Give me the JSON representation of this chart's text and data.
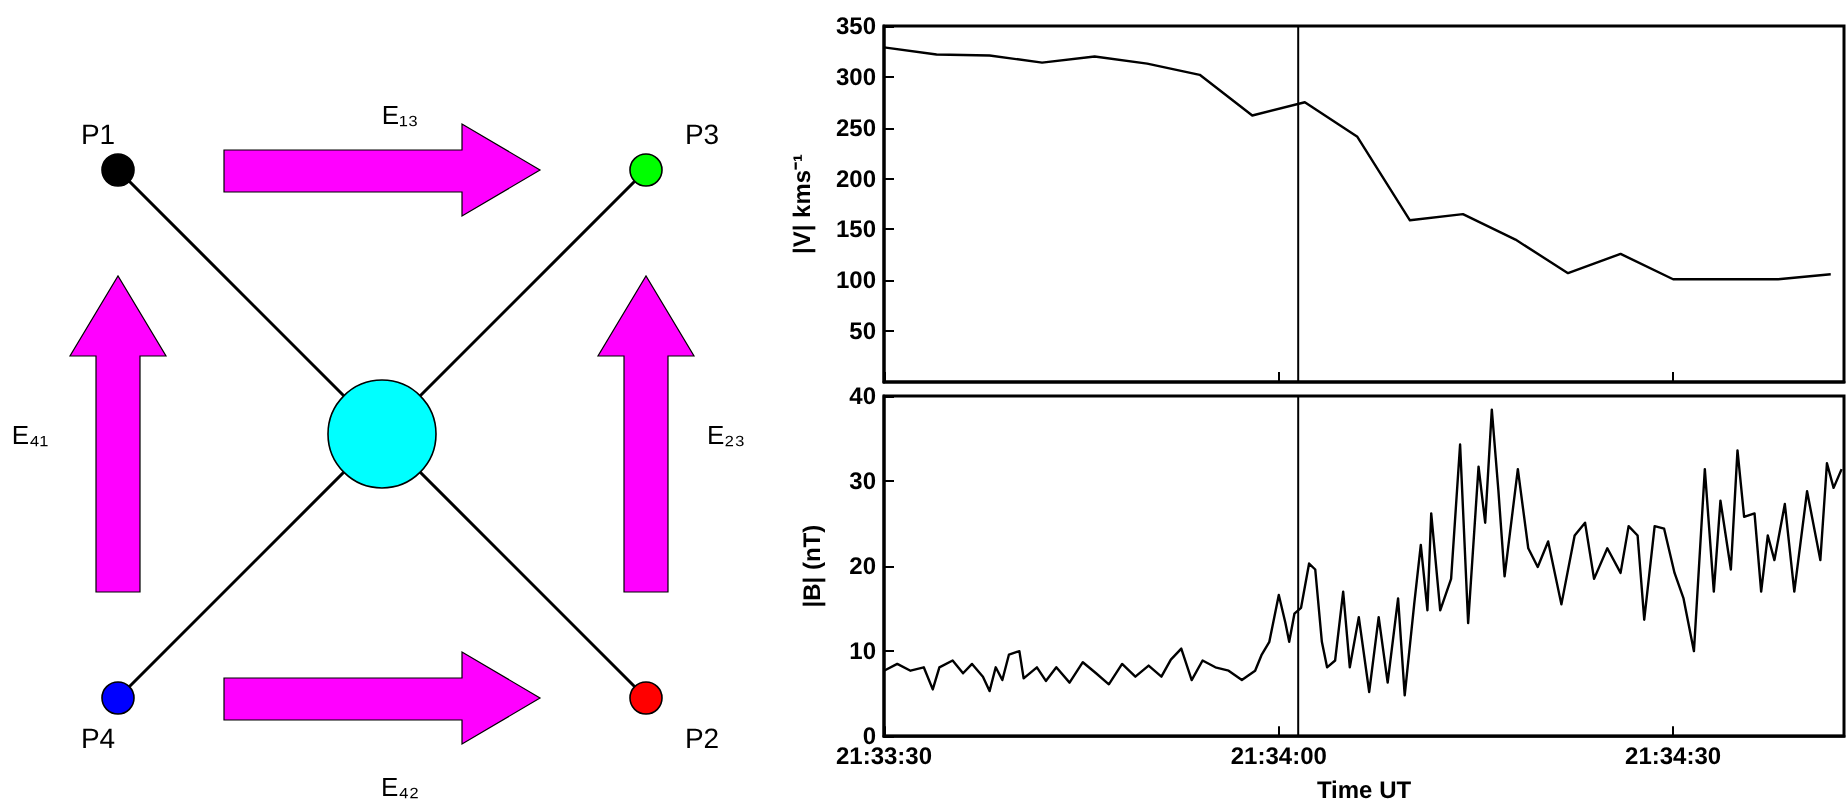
{
  "chart_data": [
    {
      "type": "other",
      "annotations": [
        "P1",
        "P3",
        "P4",
        "P2",
        "E₁₃",
        "E₄₁",
        "E₂₃",
        "E₄₂"
      ]
    },
    {
      "type": "line",
      "ylabel": "|V| kms⁻¹",
      "tick_labels": "y",
      "xlim": [
        21.55833,
        21.57861
      ],
      "xticks": [
        {
          "value": 21.55833,
          "label": null
        },
        {
          "value": 21.56667,
          "label": null
        },
        {
          "value": 21.575,
          "label": null
        }
      ],
      "ylim": [
        0,
        350
      ],
      "yticks": [
        50,
        100,
        150,
        200,
        250,
        300,
        350
      ],
      "ref_lines": [
        {
          "axis": "x",
          "value": 21.56708,
          "color": "#000000"
        }
      ],
      "series": [
        {
          "color": "#000000",
          "x": [
            21.55833,
            21.55944,
            21.56056,
            21.56167,
            21.56278,
            21.56389,
            21.565,
            21.56611,
            21.56722,
            21.56833,
            21.56944,
            21.57056,
            21.57167,
            21.57278,
            21.57389,
            21.575,
            21.57611,
            21.57722,
            21.57833
          ],
          "values": [
            329,
            322,
            321,
            314,
            320,
            313,
            302,
            262,
            275,
            241,
            159,
            165,
            140,
            107,
            126,
            101,
            101,
            101,
            106
          ]
        }
      ]
    },
    {
      "type": "line",
      "xlabel": "Time UT",
      "ylabel": "|B| (nT)",
      "xlim": [
        21.55833,
        21.57861
      ],
      "xticks": [
        {
          "value": 21.55833,
          "label": "21:33:30"
        },
        {
          "value": 21.56667,
          "label": "21:34:00"
        },
        {
          "value": 21.575,
          "label": "21:34:30"
        }
      ],
      "ylim": [
        0,
        40
      ],
      "yticks": [
        0,
        10,
        20,
        30,
        40
      ],
      "ref_lines": [
        {
          "axis": "x",
          "value": 21.56708,
          "color": "#000000"
        }
      ],
      "series": [
        {
          "color": "#000000",
          "x": [
            21.55833,
            21.55861,
            21.55889,
            21.55917,
            21.55936,
            21.5595,
            21.55978,
            21.56,
            21.56019,
            21.56042,
            21.56056,
            21.56069,
            21.56083,
            21.56097,
            21.56119,
            21.56128,
            21.56156,
            21.56175,
            21.56197,
            21.56225,
            21.56253,
            21.56281,
            21.56308,
            21.56336,
            21.56364,
            21.56392,
            21.56419,
            21.56439,
            21.56461,
            21.56483,
            21.56506,
            21.56533,
            21.56561,
            21.56589,
            21.56617,
            21.56631,
            21.56647,
            21.56667,
            21.56681,
            21.56689,
            21.567,
            21.56714,
            21.56731,
            21.56744,
            21.56758,
            21.56769,
            21.56786,
            21.56803,
            21.56817,
            21.56836,
            21.56858,
            21.56878,
            21.56897,
            21.56919,
            21.56933,
            21.56953,
            21.56967,
            21.56981,
            21.56989,
            21.57008,
            21.57031,
            21.5705,
            21.57067,
            21.57089,
            21.57103,
            21.57117,
            21.57131,
            21.57144,
            21.57172,
            21.57194,
            21.57214,
            21.57236,
            21.57264,
            21.57292,
            21.57314,
            21.57333,
            21.57361,
            21.57389,
            21.57406,
            21.57425,
            21.57439,
            21.57461,
            21.57481,
            21.57503,
            21.57522,
            21.57544,
            21.57567,
            21.57586,
            21.576,
            21.57622,
            21.57636,
            21.5765,
            21.57672,
            21.57686,
            21.577,
            21.57714,
            21.57736,
            21.57756,
            21.57783,
            21.57811,
            21.57825,
            21.57839,
            21.57856
          ],
          "values": [
            7.7,
            8.5,
            7.7,
            8.1,
            5.5,
            8.1,
            8.9,
            7.4,
            8.5,
            7,
            5.3,
            8.1,
            6.6,
            9.6,
            10,
            6.8,
            8.1,
            6.5,
            8.1,
            6.3,
            8.7,
            7.4,
            6.1,
            8.5,
            7,
            8.3,
            7,
            9,
            10.3,
            6.6,
            8.9,
            8.1,
            7.7,
            6.6,
            7.7,
            9.6,
            11.1,
            16.6,
            13.3,
            11.1,
            14.4,
            15.1,
            20.3,
            19.6,
            11.1,
            8.1,
            8.9,
            17,
            8.1,
            14,
            5.2,
            14,
            6.3,
            16.2,
            4.8,
            15.5,
            22.5,
            14.8,
            26.2,
            14.8,
            18.5,
            34.3,
            13.3,
            31.7,
            25.1,
            38.4,
            28.8,
            18.8,
            31.4,
            22.1,
            19.9,
            22.9,
            15.5,
            23.6,
            25.1,
            18.5,
            22.1,
            19.2,
            24.7,
            23.6,
            13.7,
            24.7,
            24.4,
            19.2,
            16.2,
            10,
            31.4,
            17,
            27.7,
            19.6,
            33.6,
            25.8,
            26.2,
            17,
            23.6,
            20.7,
            27.3,
            17,
            28.8,
            20.7,
            32.1,
            29.2,
            31.4
          ]
        }
      ]
    }
  ]
}
